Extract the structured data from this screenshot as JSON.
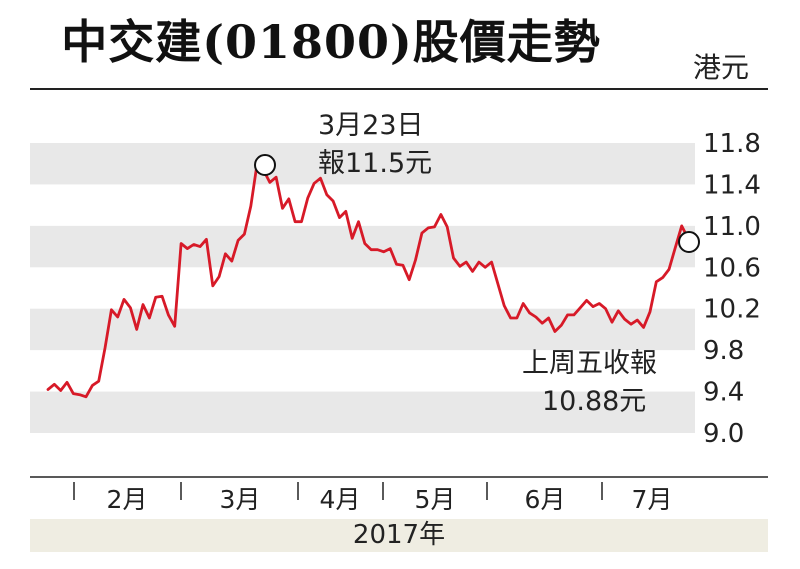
{
  "chart_data": {
    "type": "line",
    "title": "中交建(01800)股價走勢",
    "unit": "港元",
    "ylim": [
      9.0,
      11.8
    ],
    "yticks": [
      "11.8",
      "11.4",
      "11.0",
      "10.6",
      "10.2",
      "9.8",
      "9.4",
      "9.0"
    ],
    "ytick_values": [
      11.8,
      11.4,
      11.0,
      10.6,
      10.2,
      9.8,
      9.4,
      9.0
    ],
    "months": [
      "2月",
      "3月",
      "4月",
      "5月",
      "6月",
      "7月"
    ],
    "year_label": "2017年",
    "grid": "alternating horizontal bands",
    "line_color": "#d71a28",
    "series": [
      {
        "values": [
          9.42,
          9.47,
          9.41,
          9.49,
          9.38,
          9.37,
          9.35,
          9.46,
          9.5,
          9.82,
          10.19,
          10.12,
          10.29,
          10.21,
          10.0,
          10.24,
          10.11,
          10.31,
          10.32,
          10.14,
          10.03,
          10.83,
          10.78,
          10.82,
          10.8,
          10.87,
          10.42,
          10.51,
          10.73,
          10.66,
          10.86,
          10.92,
          11.19,
          11.6,
          11.54,
          11.42,
          11.47,
          11.17,
          11.26,
          11.04,
          11.04,
          11.27,
          11.41,
          11.46,
          11.3,
          11.24,
          11.08,
          11.14,
          10.88,
          11.04,
          10.83,
          10.77,
          10.77,
          10.75,
          10.78,
          10.63,
          10.62,
          10.48,
          10.67,
          10.93,
          10.98,
          10.99,
          11.11,
          10.99,
          10.69,
          10.61,
          10.65,
          10.56,
          10.65,
          10.6,
          10.65,
          10.44,
          10.23,
          10.11,
          10.11,
          10.25,
          10.16,
          10.12,
          10.06,
          10.11,
          9.98,
          10.04,
          10.14,
          10.14,
          10.21,
          10.28,
          10.22,
          10.25,
          10.2,
          10.07,
          10.18,
          10.1,
          10.05,
          10.09,
          10.02,
          10.17,
          10.46,
          10.5,
          10.58,
          10.79,
          11.0,
          10.88
        ]
      }
    ],
    "annotations": [
      {
        "point_index": 34,
        "lines": [
          "3月23日",
          "報11.5元"
        ]
      },
      {
        "point_index": 101,
        "lines": [
          "上周五收報",
          "10.88元"
        ]
      }
    ]
  }
}
